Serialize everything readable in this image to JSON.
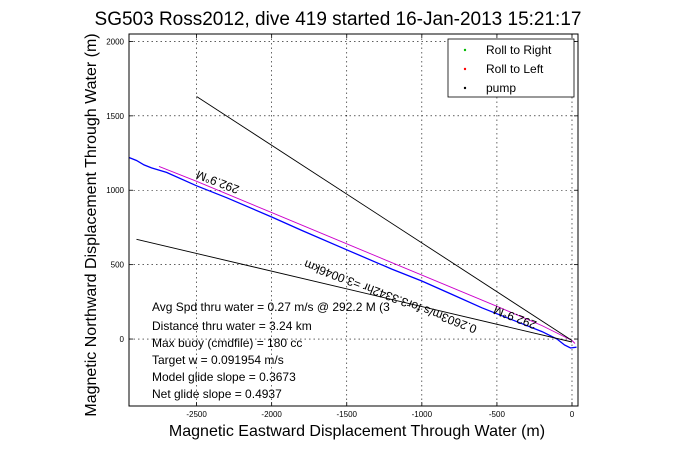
{
  "chart_data": {
    "type": "line",
    "title": "SG503 Ross2012, dive 419 started 16-Jan-2013 15:21:17",
    "xlabel": "Magnetic Eastward Displacement Through Water (m)",
    "ylabel": "Magnetic Northward Displacement Through Water (m)",
    "xlim": [
      -2950,
      40
    ],
    "ylim": [
      -450,
      2050
    ],
    "x_ticks": [
      -2500,
      -2000,
      -1500,
      -1000,
      -500,
      0
    ],
    "y_ticks": [
      0,
      500,
      1000,
      1500,
      2000
    ],
    "grid": true,
    "legend_position": "top-right",
    "legend": [
      {
        "label": "Roll to Right",
        "color": "#00bb00",
        "marker": "dot"
      },
      {
        "label": "Roll to Left",
        "color": "#ff0000",
        "marker": "dot"
      },
      {
        "label": "pump",
        "color": "#000000",
        "marker": "dot"
      }
    ],
    "series": [
      {
        "name": "track-through-water",
        "color": "#0000ff",
        "x": [
          -2950,
          -2900,
          -2850,
          -2800,
          -2700,
          -2500,
          -2300,
          -2000,
          -1800,
          -1500,
          -1200,
          -1000,
          -800,
          -600,
          -400,
          -200,
          -100,
          -50,
          -10,
          30
        ],
        "y": [
          1220,
          1200,
          1170,
          1150,
          1120,
          1030,
          950,
          820,
          730,
          600,
          470,
          390,
          300,
          210,
          130,
          50,
          0,
          -40,
          -60,
          -55
        ]
      },
      {
        "name": "model-track",
        "color": "#cc00cc",
        "x": [
          -2750,
          -2500,
          -2000,
          -1500,
          -1000,
          -500,
          -200,
          0,
          20
        ],
        "y": [
          1160,
          1060,
          850,
          640,
          430,
          220,
          90,
          -10,
          -30
        ]
      },
      {
        "name": "heading-bound-upper",
        "color": "#000000",
        "x": [
          -2500,
          0
        ],
        "y": [
          1630,
          -10
        ]
      },
      {
        "name": "heading-bound-lower",
        "color": "#000000",
        "x": [
          -2900,
          0
        ],
        "y": [
          670,
          -20
        ]
      }
    ],
    "annotations": [
      {
        "text": "292.9°M",
        "x": -2350,
        "y": 1080,
        "rotation": 201
      },
      {
        "text": "0.2603m/s for3.3342hr =3.0046km",
        "x": -1200,
        "y": 310,
        "rotation": 201
      },
      {
        "text": "292.9°M",
        "x": -370,
        "y": 170,
        "rotation": 201
      }
    ],
    "stats": [
      "Avg Spd thru water =  0.27 m/s @ 292.2     M (3",
      "Distance thru water =  3.24 km",
      "Max buoy (cmdfile) = 180 cc",
      "Target w = 0.091954 m/s",
      "Model glide slope = 0.3673",
      "Net glide slope = 0.4937"
    ]
  }
}
